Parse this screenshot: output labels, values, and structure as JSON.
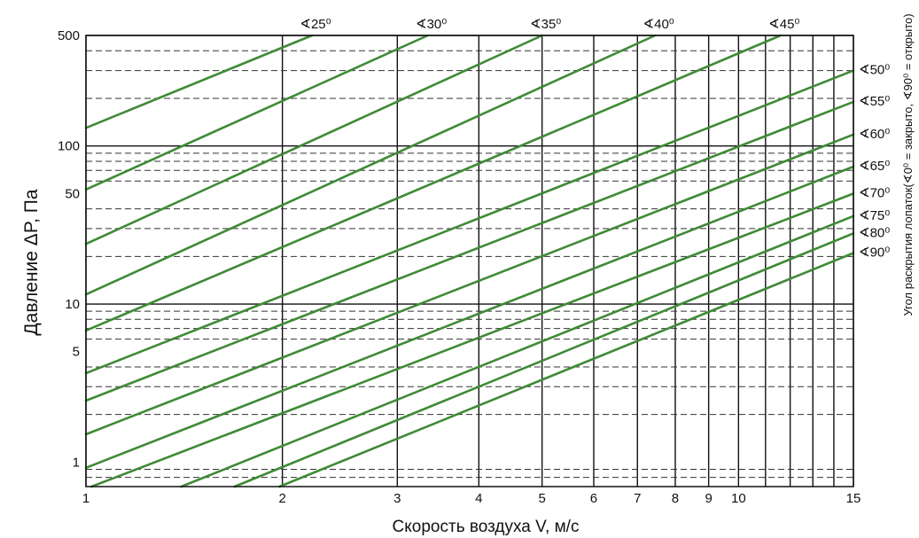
{
  "chart_data": {
    "type": "line",
    "xlabel": "Скорость воздуха V, м/с",
    "ylabel": "Давление ΔP, Па",
    "y2label": "Угол раскрытия лопаток(∢0⁰ = закрыто, ∢90⁰ = открыто)",
    "x_scale": "log",
    "y_scale": "log",
    "xlim": [
      1,
      15
    ],
    "ylim": [
      0.7,
      500
    ],
    "x_ticks": [
      1,
      2,
      3,
      4,
      5,
      6,
      7,
      8,
      9,
      10,
      15
    ],
    "x_tick_labels": [
      "1",
      "2",
      "3",
      "4",
      "5",
      "6",
      "7",
      "8",
      "9",
      "10",
      "15"
    ],
    "x_minor_lines": [
      11,
      12,
      13,
      14
    ],
    "y_ticks": [
      1,
      5,
      10,
      50,
      100,
      500
    ],
    "y_tick_labels": [
      "1",
      "5",
      "10",
      "50",
      "100",
      "500"
    ],
    "y_major_lines": [
      10,
      100,
      500
    ],
    "y_minor_lines": [
      0.8,
      0.9,
      2,
      3,
      4,
      6,
      7,
      8,
      9,
      20,
      30,
      40,
      60,
      70,
      80,
      90,
      200,
      300,
      400
    ],
    "grid": true,
    "line_color": "#3f8a36",
    "series": [
      {
        "label": "∢25⁰",
        "x": [
          1,
          2.22
        ],
        "y": [
          130,
          500
        ]
      },
      {
        "label": "∢30⁰",
        "x": [
          1,
          3.34
        ],
        "y": [
          53,
          500
        ]
      },
      {
        "label": "∢35⁰",
        "x": [
          1,
          5.0
        ],
        "y": [
          24,
          500
        ]
      },
      {
        "label": "∢40⁰",
        "x": [
          1,
          7.45
        ],
        "y": [
          11.5,
          500
        ]
      },
      {
        "label": "∢45⁰",
        "x": [
          1,
          11.6
        ],
        "y": [
          6.8,
          500
        ]
      },
      {
        "label": "∢50⁰",
        "x": [
          1,
          15
        ],
        "y": [
          3.65,
          300
        ]
      },
      {
        "label": "∢55⁰",
        "x": [
          1,
          15
        ],
        "y": [
          2.45,
          190
        ]
      },
      {
        "label": "∢60⁰",
        "x": [
          1,
          15
        ],
        "y": [
          1.5,
          118
        ]
      },
      {
        "label": "∢65⁰",
        "x": [
          1,
          15
        ],
        "y": [
          0.92,
          74
        ]
      },
      {
        "label": "∢70⁰",
        "x": [
          1.02,
          15
        ],
        "y": [
          0.7,
          50
        ]
      },
      {
        "label": "∢75⁰",
        "x": [
          1.4,
          15
        ],
        "y": [
          0.7,
          36
        ]
      },
      {
        "label": "∢80⁰",
        "x": [
          1.69,
          15
        ],
        "y": [
          0.7,
          28
        ]
      },
      {
        "label": "∢90⁰",
        "x": [
          1.98,
          15
        ],
        "y": [
          0.7,
          21
        ]
      }
    ]
  }
}
